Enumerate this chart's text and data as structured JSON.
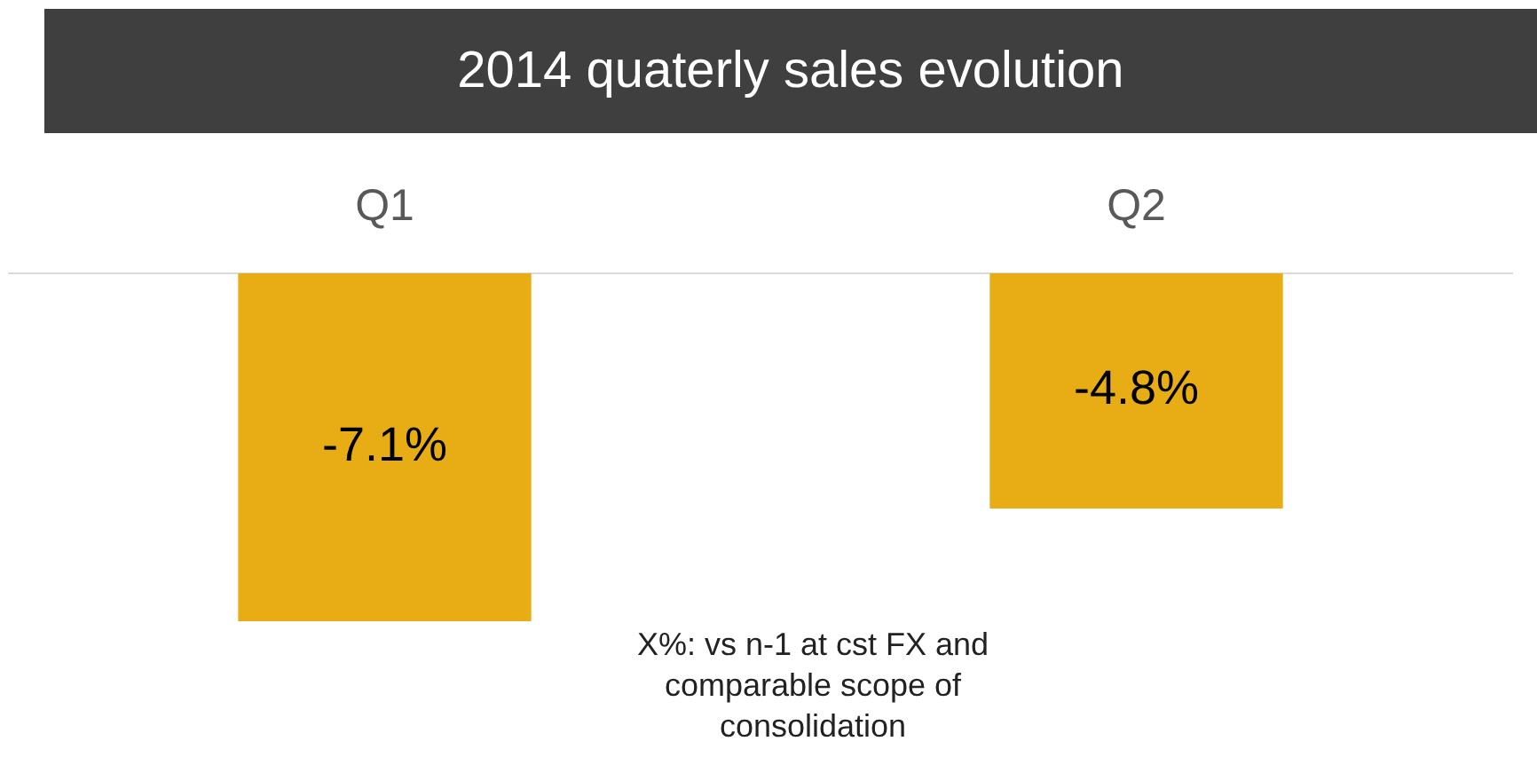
{
  "chart_data": {
    "type": "bar",
    "title": "2014 quaterly sales evolution",
    "categories": [
      "Q1",
      "Q2"
    ],
    "values": [
      -7.1,
      -4.8
    ],
    "value_labels": [
      "-7.1%",
      "-4.8%"
    ],
    "color": "#e8ad14",
    "tick_labels": "x",
    "grid": false,
    "legend": false,
    "annotations": [
      "X%: vs n-1 at cst FX and comparable scope of consolidation"
    ]
  }
}
